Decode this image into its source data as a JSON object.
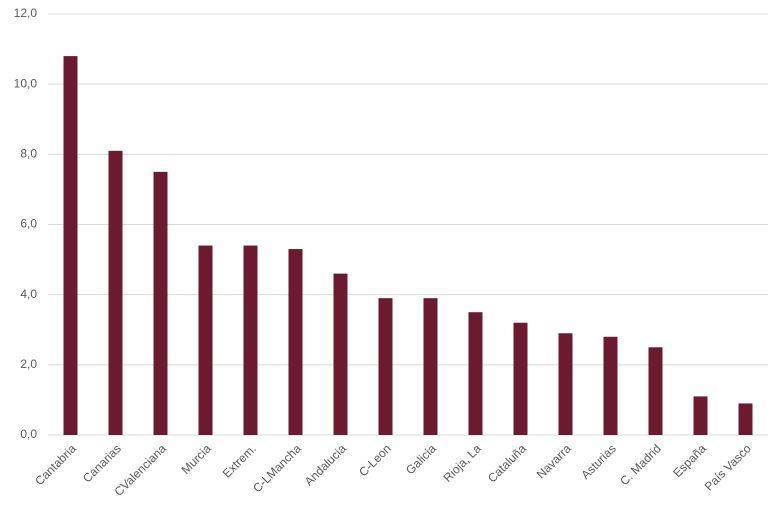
{
  "chart_data": {
    "type": "bar",
    "categories": [
      "Cantabria",
      "Canarias",
      "CValenciana",
      "Murcia",
      "Extrem.",
      "C-LMancha",
      "Andalucia",
      "C-Leon",
      "Galicia",
      "Rioja, La",
      "Cataluña",
      "Navarra",
      "Asturias",
      "C. Madrid",
      "España",
      "País Vasco"
    ],
    "values": [
      10.8,
      8.1,
      7.5,
      5.4,
      5.4,
      5.3,
      4.6,
      3.9,
      3.9,
      3.5,
      3.2,
      2.9,
      2.8,
      2.5,
      1.1,
      0.9
    ],
    "color": "#6b1a32",
    "ylim": [
      0,
      12
    ],
    "yticks": [
      {
        "value": 0,
        "label": "0,0"
      },
      {
        "value": 2,
        "label": "2,0"
      },
      {
        "value": 4,
        "label": "4,0"
      },
      {
        "value": 6,
        "label": "6,0"
      },
      {
        "value": 8,
        "label": "8,0"
      },
      {
        "value": 10,
        "label": "10,0"
      },
      {
        "value": 12,
        "label": "12,0"
      }
    ],
    "grid": true
  }
}
